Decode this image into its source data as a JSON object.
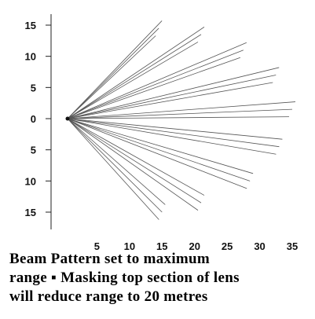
{
  "chart_data": {
    "type": "line",
    "title": "",
    "xlabel": "",
    "ylabel": "",
    "xlim": [
      0,
      35
    ],
    "ylim": [
      -15,
      15
    ],
    "x_ticks": [
      "5",
      "10",
      "15",
      "20",
      "25",
      "30",
      "35"
    ],
    "y_ticks": [
      "15",
      "10",
      "5",
      "0",
      "5",
      "10",
      "15"
    ],
    "origin": [
      0,
      0
    ],
    "beam_groups": [
      {
        "end_x": 14.5,
        "end_y": 14.5,
        "count": 3
      },
      {
        "end_x": 21.0,
        "end_y": 13.5,
        "count": 3
      },
      {
        "end_x": 27.5,
        "end_y": 11.0,
        "count": 3
      },
      {
        "end_x": 32.5,
        "end_y": 7.0,
        "count": 3
      },
      {
        "end_x": 35.0,
        "end_y": 1.5,
        "count": 3
      },
      {
        "end_x": 33.0,
        "end_y": -4.5,
        "count": 3
      },
      {
        "end_x": 28.5,
        "end_y": -10.0,
        "count": 3
      },
      {
        "end_x": 21.0,
        "end_y": -13.5,
        "count": 3
      },
      {
        "end_x": 15.0,
        "end_y": -15.0,
        "count": 3
      }
    ],
    "grid": false,
    "line_color": "#555555"
  },
  "caption": {
    "line1": "Beam Pattern set to maximum",
    "line2": "range",
    "line2_bullet": "▪",
    "line2_rest": "Masking top section of lens",
    "line3": "will reduce range to 20 metres"
  }
}
